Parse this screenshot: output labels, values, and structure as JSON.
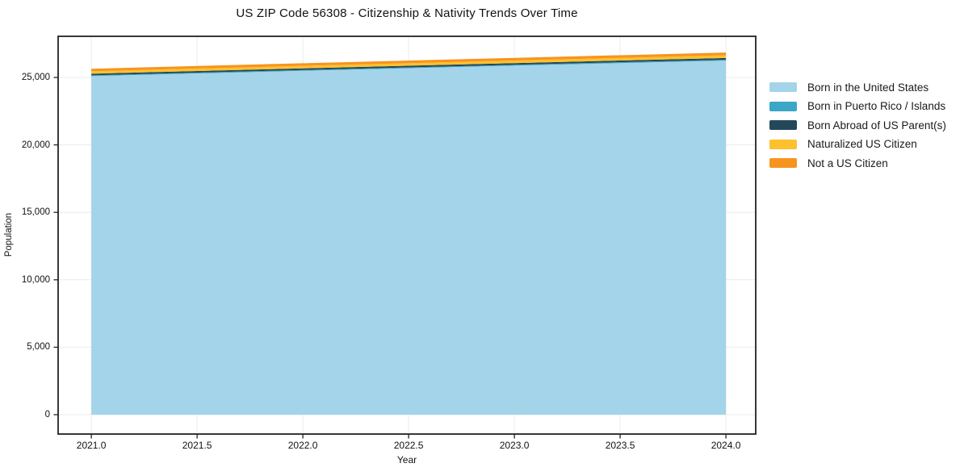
{
  "chart_data": {
    "type": "area",
    "stacked": true,
    "title": "US ZIP Code 56308 - Citizenship & Nativity Trends Over Time",
    "xlabel": "Year",
    "ylabel": "Population",
    "x": [
      2021,
      2022,
      2023,
      2024
    ],
    "series": [
      {
        "name": "Born in the United States",
        "color": "#A4D4EA",
        "values": [
          25100,
          25490,
          25875,
          26250
        ]
      },
      {
        "name": "Born in Puerto Rico / Islands",
        "color": "#3BA6C6",
        "values": [
          60,
          62,
          64,
          66
        ]
      },
      {
        "name": "Born Abroad of US Parent(s)",
        "color": "#24485A",
        "values": [
          120,
          123,
          126,
          128
        ]
      },
      {
        "name": "Naturalized US Citizen",
        "color": "#FCC12D",
        "values": [
          180,
          185,
          190,
          196
        ]
      },
      {
        "name": "Not a US Citizen",
        "color": "#F7941E",
        "values": [
          185,
          192,
          198,
          205
        ]
      }
    ],
    "xlim": [
      2020.843,
      2024.141
    ],
    "ylim": [
      -1435,
      28050
    ],
    "xticks": {
      "values": [
        2021.0,
        2021.5,
        2022.0,
        2022.5,
        2023.0,
        2023.5,
        2024.0
      ],
      "labels": [
        "2021.0",
        "2021.5",
        "2022.0",
        "2022.5",
        "2023.0",
        "2023.5",
        "2024.0"
      ]
    },
    "yticks": {
      "values": [
        0,
        5000,
        10000,
        15000,
        20000,
        25000
      ],
      "labels": [
        "0",
        "5,000",
        "10,000",
        "15,000",
        "20,000",
        "25,000"
      ]
    },
    "grid": true,
    "grid_color": "#ebebeb",
    "spine_color": "#222222",
    "legend_position": "right outside"
  }
}
